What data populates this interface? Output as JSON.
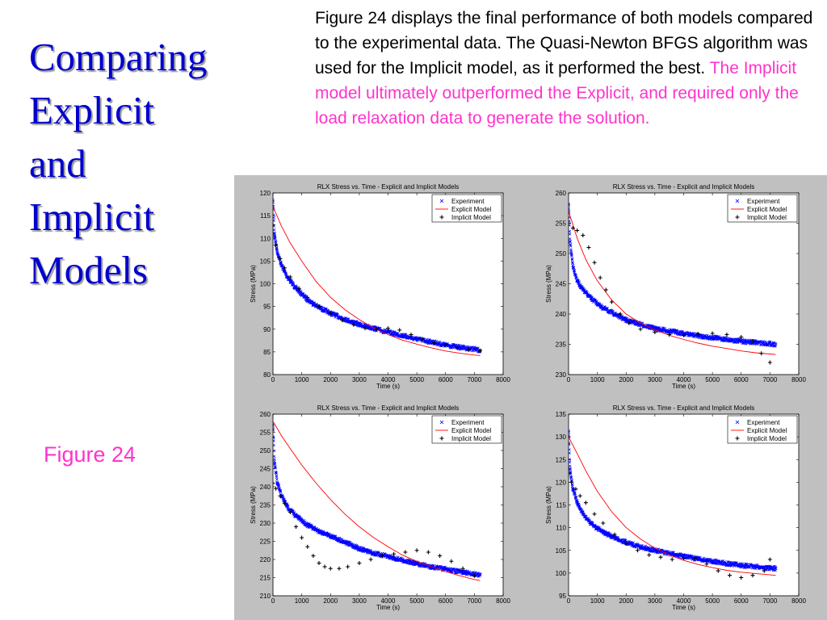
{
  "slide": {
    "title_lines": [
      "Comparing",
      "Explicit",
      "and",
      "Implicit",
      "Models"
    ],
    "body_black": "Figure 24 displays the final performance of both models compared to the experimental data. The Quasi-Newton BFGS algorithm was used for the Implicit model, as it performed the best. ",
    "body_highlight": "The Implicit model ultimately outperformed the Explicit, and required only the load relaxation data to generate the solution.",
    "figure_label": "Figure 24",
    "colors": {
      "title": "#0000cc",
      "highlight": "#ff33cc",
      "panel_bg": "#c0c0c0"
    }
  },
  "chart_data": [
    {
      "type": "scatter",
      "title": "RLX Stress vs. Time - Explicit and Implicit Models",
      "xlabel": "Time (s)",
      "ylabel": "Stress (MPa)",
      "xlim": [
        0,
        8000
      ],
      "ylim": [
        80,
        120
      ],
      "xticks": [
        0,
        1000,
        2000,
        3000,
        4000,
        5000,
        6000,
        7000,
        8000
      ],
      "yticks": [
        80,
        85,
        90,
        95,
        100,
        105,
        110,
        115,
        120
      ],
      "legend": [
        "Experiment",
        "Explicit Model",
        "Implicit Model"
      ],
      "legend_position": "top-right",
      "series": [
        {
          "name": "Experiment",
          "marker": "x",
          "color": "#0000ff",
          "x": [
            0,
            50,
            150,
            300,
            500,
            800,
            1200,
            1600,
            2000,
            2500,
            3000,
            3500,
            4000,
            4500,
            5000,
            5500,
            6000,
            6500,
            7000,
            7200
          ],
          "y": [
            118,
            111,
            107,
            104,
            101.5,
            99,
            96.5,
            94.8,
            93.5,
            92.2,
            91,
            90.2,
            89.3,
            88.6,
            87.8,
            87.2,
            86.5,
            86,
            85.6,
            85.3
          ]
        },
        {
          "name": "Explicit Model",
          "marker": "line",
          "color": "#ff0000",
          "x": [
            0,
            300,
            600,
            1000,
            1500,
            2000,
            2500,
            3000,
            3500,
            4000,
            4500,
            5000,
            5500,
            6000,
            6500,
            7000,
            7200
          ],
          "y": [
            117,
            112.6,
            109,
            105,
            100.5,
            97,
            94.3,
            92.1,
            90.3,
            88.8,
            87.6,
            86.7,
            85.9,
            85.2,
            84.7,
            84.3,
            84.2
          ]
        },
        {
          "name": "Implicit Model",
          "marker": "+",
          "color": "#000000",
          "x": [
            0,
            100,
            250,
            400,
            600,
            900,
            1200,
            1600,
            2000,
            2400,
            2800,
            3200,
            3600,
            4000,
            4400,
            4800,
            5200,
            5600,
            6000,
            6400,
            6800,
            7200
          ],
          "y": [
            113,
            108.5,
            105.5,
            103.5,
            101.5,
            99,
            97,
            95,
            93.5,
            92,
            91,
            90.2,
            90,
            90.2,
            89.8,
            88.8,
            87.8,
            87,
            86.5,
            86,
            85.5,
            85.3
          ]
        }
      ]
    },
    {
      "type": "scatter",
      "title": "RLX Stress vs. Time - Explicit and Implicit Models",
      "xlabel": "Time (s)",
      "ylabel": "Stress (MPa)",
      "xlim": [
        0,
        8000
      ],
      "ylim": [
        230,
        260
      ],
      "xticks": [
        0,
        1000,
        2000,
        3000,
        4000,
        5000,
        6000,
        7000,
        8000
      ],
      "yticks": [
        230,
        235,
        240,
        245,
        250,
        255,
        260
      ],
      "legend": [
        "Experiment",
        "Explicit Model",
        "Implicit Model"
      ],
      "legend_position": "top-right",
      "series": [
        {
          "name": "Experiment",
          "marker": "x",
          "color": "#0000ff",
          "x": [
            0,
            50,
            150,
            300,
            500,
            800,
            1200,
            1600,
            2000,
            2500,
            3000,
            3500,
            4000,
            4500,
            5000,
            5500,
            6000,
            6500,
            7000,
            7200
          ],
          "y": [
            258,
            252,
            248,
            245.5,
            244,
            242.5,
            241,
            240,
            239,
            238.3,
            237.6,
            237.2,
            236.8,
            236.4,
            236.1,
            235.8,
            235.5,
            235.3,
            235.1,
            235
          ]
        },
        {
          "name": "Explicit Model",
          "marker": "line",
          "color": "#ff0000",
          "x": [
            0,
            300,
            600,
            1000,
            1500,
            2000,
            2500,
            3000,
            3500,
            4000,
            4500,
            5000,
            5500,
            6000,
            6500,
            7000,
            7200
          ],
          "y": [
            257,
            252.5,
            249,
            245.5,
            242.3,
            240,
            238.5,
            237.4,
            236.5,
            235.8,
            235.2,
            234.7,
            234.3,
            233.9,
            233.6,
            233.4,
            233.3
          ]
        },
        {
          "name": "Implicit Model",
          "marker": "+",
          "color": "#000000",
          "x": [
            0,
            150,
            300,
            500,
            700,
            900,
            1100,
            1300,
            1500,
            1800,
            2100,
            2500,
            3000,
            3500,
            4000,
            4500,
            5000,
            5500,
            6000,
            6400,
            6700,
            7000
          ],
          "y": [
            255,
            254.2,
            253.8,
            253,
            251,
            248.5,
            246,
            244,
            242,
            240,
            238.5,
            237.5,
            237,
            236.6,
            236.5,
            236.7,
            236.8,
            236.6,
            236.2,
            235.5,
            233.5,
            232
          ]
        }
      ]
    },
    {
      "type": "scatter",
      "title": "RLX Stress vs. Time - Explicit and Implicit Models",
      "xlabel": "Time (s)",
      "ylabel": "Stress (MPa)",
      "xlim": [
        0,
        8000
      ],
      "ylim": [
        210,
        260
      ],
      "xticks": [
        0,
        1000,
        2000,
        3000,
        4000,
        5000,
        6000,
        7000,
        8000
      ],
      "yticks": [
        210,
        215,
        220,
        225,
        230,
        235,
        240,
        245,
        250,
        255,
        260
      ],
      "legend": [
        "Experiment",
        "Explicit Model",
        "Implicit Model"
      ],
      "legend_position": "top-right",
      "series": [
        {
          "name": "Experiment",
          "marker": "x",
          "color": "#0000ff",
          "x": [
            0,
            50,
            150,
            300,
            500,
            800,
            1200,
            1600,
            2000,
            2500,
            3000,
            3500,
            4000,
            4500,
            5000,
            5500,
            6000,
            6500,
            7000,
            7200
          ],
          "y": [
            257,
            247,
            241,
            237.5,
            234.5,
            232,
            229.5,
            227.8,
            226.5,
            224.8,
            223,
            221.7,
            220.8,
            219.8,
            218.8,
            218,
            217.3,
            216.6,
            216,
            215.8
          ]
        },
        {
          "name": "Explicit Model",
          "marker": "line",
          "color": "#ff0000",
          "x": [
            0,
            300,
            600,
            1000,
            1500,
            2000,
            2500,
            3000,
            3500,
            4000,
            4500,
            5000,
            5500,
            6000,
            6500,
            7000,
            7200
          ],
          "y": [
            258,
            254,
            250.5,
            246,
            241,
            236.5,
            232.5,
            229,
            226,
            223.5,
            221.2,
            219.5,
            218,
            216.7,
            215.5,
            214.5,
            214.2
          ]
        },
        {
          "name": "Implicit Model",
          "marker": "+",
          "color": "#000000",
          "x": [
            0,
            100,
            250,
            400,
            600,
            800,
            1000,
            1200,
            1400,
            1600,
            1800,
            2000,
            2300,
            2600,
            3000,
            3400,
            3800,
            4200,
            4600,
            5000,
            5400,
            5800,
            6200,
            6600,
            7000
          ],
          "y": [
            241,
            239.5,
            237.5,
            235.5,
            233,
            229,
            226,
            223.5,
            221,
            219,
            218,
            217.5,
            217.5,
            218,
            219,
            220,
            221,
            221.5,
            222,
            222.5,
            222,
            221,
            219.5,
            217.5,
            215.5
          ]
        }
      ]
    },
    {
      "type": "scatter",
      "title": "RLX Stress vs. Time - Explicit and Implicit Models",
      "xlabel": "Time (s)",
      "ylabel": "Stress (MPa)",
      "xlim": [
        0,
        8000
      ],
      "ylim": [
        95,
        135
      ],
      "xticks": [
        0,
        1000,
        2000,
        3000,
        4000,
        5000,
        6000,
        7000,
        8000
      ],
      "yticks": [
        95,
        100,
        105,
        110,
        115,
        120,
        125,
        130,
        135
      ],
      "legend": [
        "Experiment",
        "Explicit Model",
        "Implicit Model"
      ],
      "legend_position": "top-right",
      "series": [
        {
          "name": "Experiment",
          "marker": "x",
          "color": "#0000ff",
          "x": [
            0,
            50,
            150,
            300,
            500,
            800,
            1200,
            1600,
            2000,
            2500,
            3000,
            3500,
            4000,
            4500,
            5000,
            5500,
            6000,
            6500,
            7000,
            7200
          ],
          "y": [
            131,
            123,
            118.5,
            115.5,
            113,
            110.8,
            109,
            107.8,
            106.8,
            105.8,
            105,
            104.3,
            103.7,
            103.1,
            102.6,
            102.1,
            101.7,
            101.4,
            101.1,
            101
          ]
        },
        {
          "name": "Explicit Model",
          "marker": "line",
          "color": "#ff0000",
          "x": [
            0,
            300,
            600,
            1000,
            1500,
            2000,
            2500,
            3000,
            3500,
            4000,
            4500,
            5000,
            5500,
            6000,
            6500,
            7000,
            7200
          ],
          "y": [
            130,
            126.3,
            122.5,
            118,
            113.5,
            110,
            107.5,
            105.5,
            104,
            102.8,
            101.9,
            101.2,
            100.6,
            100.2,
            99.9,
            99.6,
            99.5
          ]
        },
        {
          "name": "Implicit Model",
          "marker": "+",
          "color": "#000000",
          "x": [
            0,
            100,
            250,
            400,
            600,
            900,
            1200,
            1600,
            2000,
            2400,
            2800,
            3200,
            3600,
            4000,
            4400,
            4800,
            5200,
            5600,
            6000,
            6400,
            6800,
            7000
          ],
          "y": [
            122,
            120,
            118.5,
            117,
            115.5,
            113,
            111,
            108.5,
            106.5,
            105,
            104,
            103.5,
            103,
            103.3,
            103.2,
            102,
            100.5,
            99.5,
            99,
            99.5,
            100.5,
            103
          ]
        }
      ]
    }
  ]
}
